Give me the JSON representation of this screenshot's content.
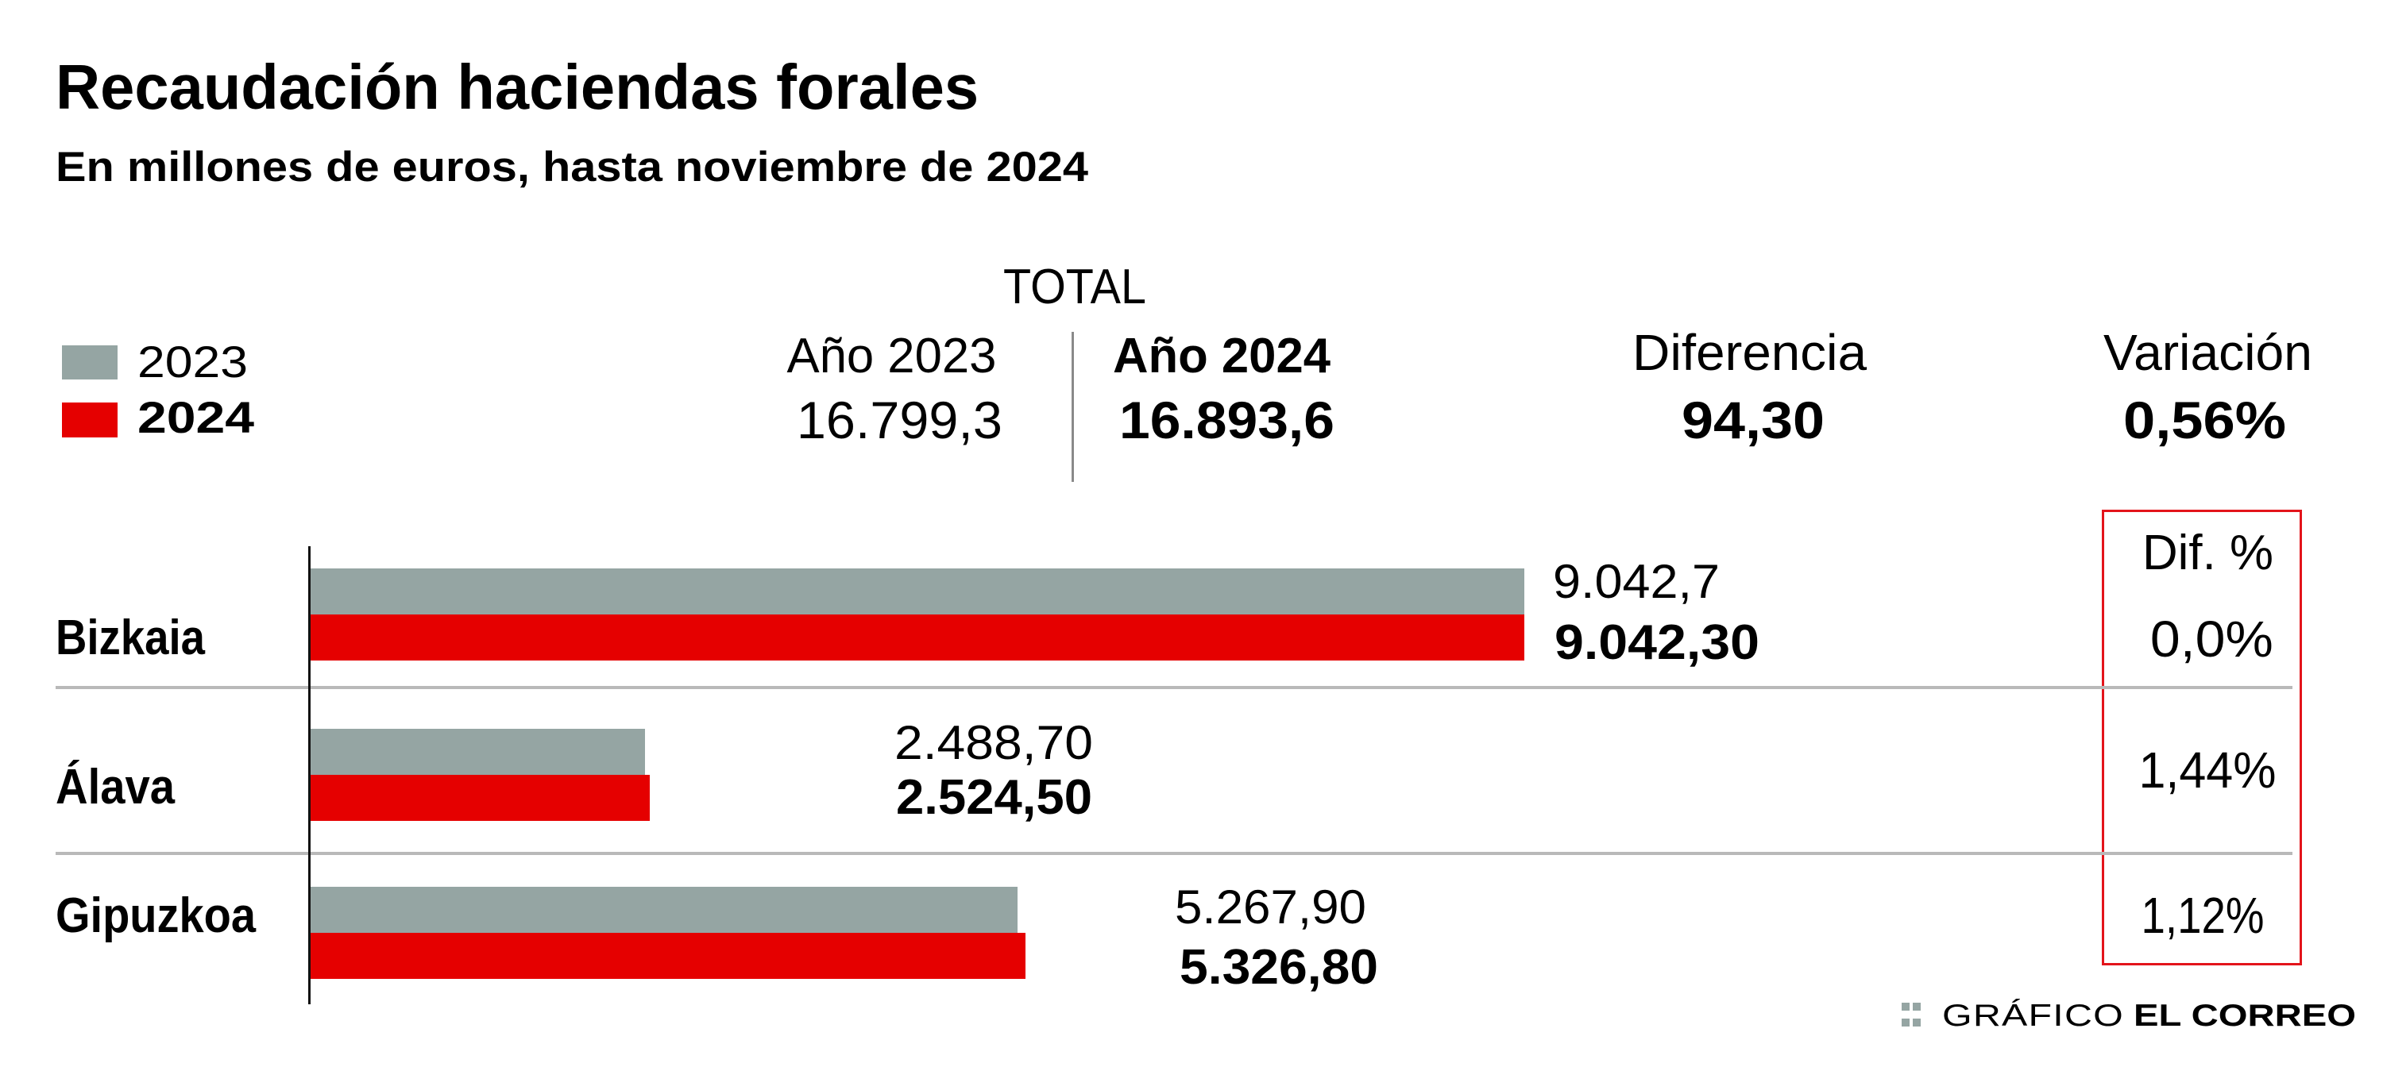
{
  "header": {
    "title": "Recaudación haciendas forales",
    "subtitle": "En millones de euros, hasta noviembre de 2024"
  },
  "legend": [
    {
      "label": "2023",
      "color": "#95a5a3"
    },
    {
      "label": "2024",
      "color": "#e50000"
    }
  ],
  "total": {
    "heading": "TOTAL",
    "year2023": {
      "label": "Año 2023",
      "value": "16.799,3"
    },
    "year2024": {
      "label": "Año 2024",
      "value": "16.893,6"
    },
    "difference": {
      "label": "Diferencia",
      "value": "94,30"
    },
    "variation": {
      "label": "Variación",
      "value": "0,56%"
    }
  },
  "dif_pct_header": "Dif. %",
  "regions": [
    {
      "name": "Bizkaia",
      "v2023": "9.042,7",
      "v2024": "9.042,30",
      "dif_pct": "0,0%"
    },
    {
      "name": "Álava",
      "v2023": "2.488,70",
      "v2024": "2.524,50",
      "dif_pct": "1,44%"
    },
    {
      "name": "Gipuzkoa",
      "v2023": "5.267,90",
      "v2024": "5.326,80",
      "dif_pct": "1,12%"
    }
  ],
  "footer": {
    "prefix": "GRÁFICO",
    "brand": "EL CORREO"
  },
  "chart_data": {
    "type": "bar",
    "orientation": "horizontal",
    "title": "Recaudación haciendas forales",
    "subtitle": "En millones de euros, hasta noviembre de 2024",
    "categories": [
      "Bizkaia",
      "Álava",
      "Gipuzkoa"
    ],
    "series": [
      {
        "name": "2023",
        "color": "#95a5a3",
        "values": [
          9042.7,
          2488.7,
          5267.9
        ]
      },
      {
        "name": "2024",
        "color": "#e50000",
        "values": [
          9042.3,
          2524.5,
          5326.8
        ]
      }
    ],
    "dif_pct": [
      0.0,
      1.44,
      1.12
    ],
    "xlim": [
      0,
      9042.7
    ],
    "grid": false,
    "legend": "top-left",
    "xlabel": "",
    "ylabel": ""
  }
}
